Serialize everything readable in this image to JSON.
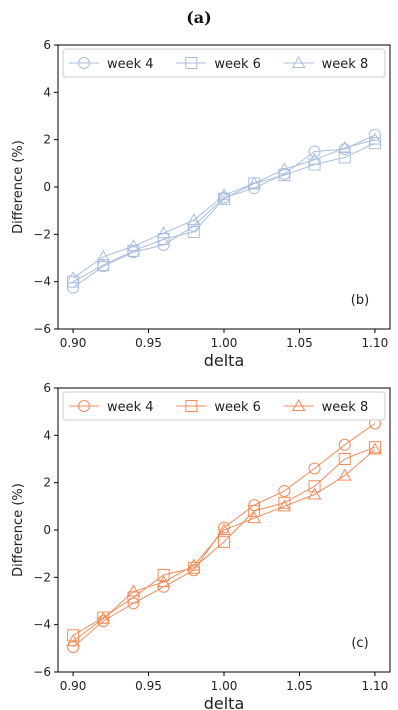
{
  "figure_title": "(a)",
  "chart_data": [
    {
      "type": "line",
      "panel_label": "(b)",
      "color": "#a9bedf",
      "xlabel": "delta",
      "ylabel": "Difference (%)",
      "xlim": [
        0.89,
        1.11
      ],
      "ylim": [
        -6,
        6
      ],
      "xticks": [
        "0.90",
        "0.95",
        "1.00",
        "1.05",
        "1.10"
      ],
      "yticks": [
        "−6",
        "−4",
        "−2",
        "0",
        "2",
        "4",
        "6"
      ],
      "legend_position": "top",
      "grid": false,
      "x": [
        0.9,
        0.92,
        0.94,
        0.96,
        0.98,
        1.0,
        1.02,
        1.04,
        1.06,
        1.08,
        1.1
      ],
      "series": [
        {
          "name": "week 4",
          "marker": "circle",
          "values": [
            -4.25,
            -3.35,
            -2.75,
            -2.45,
            -1.65,
            -0.45,
            -0.05,
            0.55,
            1.5,
            1.6,
            2.2
          ]
        },
        {
          "name": "week 6",
          "marker": "square",
          "values": [
            -4.0,
            -3.3,
            -2.7,
            -2.2,
            -1.9,
            -0.5,
            0.15,
            0.5,
            0.95,
            1.25,
            1.85
          ]
        },
        {
          "name": "week 8",
          "marker": "triangle",
          "values": [
            -3.85,
            -2.95,
            -2.5,
            -1.95,
            -1.4,
            -0.35,
            0.15,
            0.75,
            1.15,
            1.65,
            2.0
          ]
        }
      ]
    },
    {
      "type": "line",
      "panel_label": "(c)",
      "color": "#f28c5b",
      "xlabel": "delta",
      "ylabel": "Difference (%)",
      "xlim": [
        0.89,
        1.11
      ],
      "ylim": [
        -6,
        6
      ],
      "xticks": [
        "0.90",
        "0.95",
        "1.00",
        "1.05",
        "1.10"
      ],
      "yticks": [
        "−6",
        "−4",
        "−2",
        "0",
        "2",
        "4",
        "6"
      ],
      "legend_position": "top",
      "grid": false,
      "x": [
        0.9,
        0.92,
        0.94,
        0.96,
        0.98,
        1.0,
        1.02,
        1.04,
        1.06,
        1.08,
        1.1
      ],
      "series": [
        {
          "name": "week 4",
          "marker": "circle",
          "values": [
            -4.95,
            -3.85,
            -3.1,
            -2.4,
            -1.7,
            0.1,
            1.05,
            1.65,
            2.6,
            3.6,
            4.5
          ]
        },
        {
          "name": "week 6",
          "marker": "square",
          "values": [
            -4.45,
            -3.7,
            -2.85,
            -1.9,
            -1.6,
            -0.5,
            0.8,
            1.15,
            1.85,
            3.0,
            3.5
          ]
        },
        {
          "name": "week 8",
          "marker": "triangle",
          "values": [
            -4.7,
            -3.75,
            -2.6,
            -2.2,
            -1.5,
            0.0,
            0.5,
            1.0,
            1.5,
            2.3,
            3.4
          ]
        }
      ]
    }
  ]
}
